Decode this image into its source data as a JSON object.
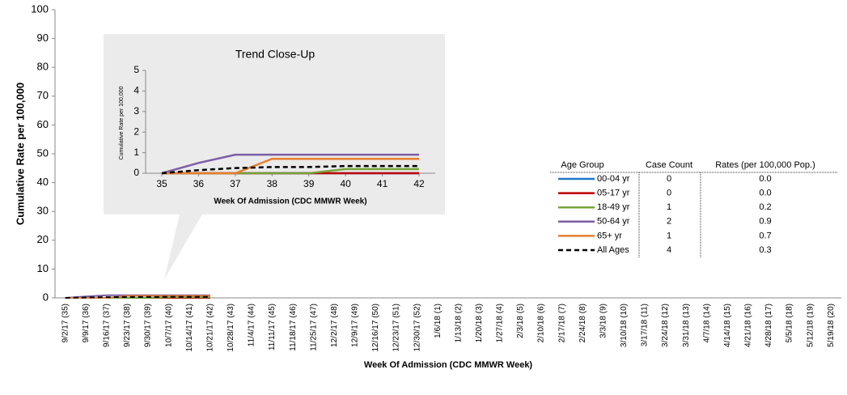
{
  "chart_data": [
    {
      "type": "line",
      "y_label": "Cumulative Rate per 100,000",
      "x_label": "Week Of Admission  (CDC MMWR Week)",
      "categories": [
        "9/2/17 (35)",
        "9/9/17 (36)",
        "9/16/17 (37)",
        "9/23/17 (38)",
        "9/30/17 (39)",
        "10/7/17 (40)",
        "10/14/17 (41)",
        "10/21/17 (42)",
        "10/28/17 (43)",
        "11/4/17 (44)",
        "11/11/17 (45)",
        "11/18/17 (46)",
        "11/25/17 (47)",
        "12/2/17 (48)",
        "12/9/17 (49)",
        "12/16/17 (50)",
        "12/23/17 (51)",
        "12/30/17 (52)",
        "1/6/18 (1)",
        "1/13/18 (2)",
        "1/20/18 (3)",
        "1/27/18 (4)",
        "2/3/18 (5)",
        "2/10/18 (6)",
        "2/17/18 (7)",
        "2/24/18 (8)",
        "3/3/18 (9)",
        "3/10/18 (10)",
        "3/17/18 (11)",
        "3/24/18 (12)",
        "3/31/18 (13)",
        "4/7/18 (14)",
        "4/14/18 (15)",
        "4/21/18 (16)",
        "4/28/18 (17)",
        "5/5/18 (18)",
        "5/12/18 (19)",
        "5/19/18 (20)"
      ],
      "ylim": [
        0,
        100
      ],
      "yticks": [
        0,
        10,
        20,
        30,
        40,
        50,
        60,
        70,
        80,
        90,
        100
      ],
      "legend_headers": [
        "Age Group",
        "Case Count",
        "Rates (per 100,000 Pop.)"
      ],
      "series": [
        {
          "name": "00-04 yr",
          "color": "#1f77c9",
          "dashed": false,
          "case_count": 0,
          "rate": {
            "value": 0,
            "label": "0.0"
          },
          "values": [
            0,
            0,
            0,
            0,
            0,
            0,
            0,
            0,
            null,
            null,
            null,
            null,
            null,
            null,
            null,
            null,
            null,
            null,
            null,
            null,
            null,
            null,
            null,
            null,
            null,
            null,
            null,
            null,
            null,
            null,
            null,
            null,
            null,
            null,
            null,
            null,
            null,
            null
          ]
        },
        {
          "name": "05-17 yr",
          "color": "#c00000",
          "dashed": false,
          "case_count": 0,
          "rate": {
            "value": 0,
            "label": "0.0"
          },
          "values": [
            0,
            0,
            0,
            0,
            0,
            0,
            0,
            0,
            null,
            null,
            null,
            null,
            null,
            null,
            null,
            null,
            null,
            null,
            null,
            null,
            null,
            null,
            null,
            null,
            null,
            null,
            null,
            null,
            null,
            null,
            null,
            null,
            null,
            null,
            null,
            null,
            null,
            null
          ]
        },
        {
          "name": "18-49 yr",
          "color": "#77a33a",
          "dashed": false,
          "case_count": 1,
          "rate": {
            "value": 0.2,
            "label": "0.2"
          },
          "values": [
            0,
            0,
            0,
            0,
            0,
            0.2,
            0.2,
            0.2,
            null,
            null,
            null,
            null,
            null,
            null,
            null,
            null,
            null,
            null,
            null,
            null,
            null,
            null,
            null,
            null,
            null,
            null,
            null,
            null,
            null,
            null,
            null,
            null,
            null,
            null,
            null,
            null,
            null,
            null
          ]
        },
        {
          "name": "50-64 yr",
          "color": "#7b5ea7",
          "dashed": false,
          "case_count": 2,
          "rate": {
            "value": 0.9,
            "label": "0.9"
          },
          "values": [
            0,
            0.5,
            0.9,
            0.9,
            0.9,
            0.9,
            0.9,
            0.9,
            null,
            null,
            null,
            null,
            null,
            null,
            null,
            null,
            null,
            null,
            null,
            null,
            null,
            null,
            null,
            null,
            null,
            null,
            null,
            null,
            null,
            null,
            null,
            null,
            null,
            null,
            null,
            null,
            null,
            null
          ]
        },
        {
          "name": "65+ yr",
          "color": "#e87d2f",
          "dashed": false,
          "case_count": 1,
          "rate": {
            "value": 0.7,
            "label": "0.7"
          },
          "values": [
            0,
            0,
            0,
            0.7,
            0.7,
            0.7,
            0.7,
            0.7,
            null,
            null,
            null,
            null,
            null,
            null,
            null,
            null,
            null,
            null,
            null,
            null,
            null,
            null,
            null,
            null,
            null,
            null,
            null,
            null,
            null,
            null,
            null,
            null,
            null,
            null,
            null,
            null,
            null,
            null
          ]
        },
        {
          "name": "All Ages",
          "color": "#000000",
          "dashed": true,
          "case_count": 4,
          "rate": {
            "value": 0.3,
            "label": "0.3"
          },
          "values": [
            0,
            0.15,
            0.25,
            0.3,
            0.3,
            0.35,
            0.35,
            0.35,
            null,
            null,
            null,
            null,
            null,
            null,
            null,
            null,
            null,
            null,
            null,
            null,
            null,
            null,
            null,
            null,
            null,
            null,
            null,
            null,
            null,
            null,
            null,
            null,
            null,
            null,
            null,
            null,
            null,
            null
          ]
        }
      ]
    },
    {
      "type": "line",
      "title": "Trend Close-Up",
      "y_label": "Cumulative Rate per 100,000",
      "x_label": "Week Of Admission  (CDC MMWR Week)",
      "x": [
        35,
        36,
        37,
        38,
        39,
        40,
        41,
        42
      ],
      "xlim": [
        35,
        42
      ],
      "xticks": [
        35,
        36,
        37,
        38,
        39,
        40,
        41,
        42
      ],
      "ylim": [
        0,
        5
      ],
      "yticks": [
        0,
        1,
        2,
        3,
        4,
        5
      ],
      "series": [
        {
          "name": "00-04 yr",
          "color": "#1f77c9",
          "dashed": false,
          "values": [
            0,
            0,
            0,
            0,
            0,
            0,
            0,
            0
          ]
        },
        {
          "name": "05-17 yr",
          "color": "#c00000",
          "dashed": false,
          "values": [
            0,
            0,
            0,
            0,
            0,
            0,
            0,
            0
          ]
        },
        {
          "name": "18-49 yr",
          "color": "#77a33a",
          "dashed": false,
          "values": [
            0,
            0,
            0,
            0,
            0,
            0.2,
            0.2,
            0.2
          ]
        },
        {
          "name": "50-64 yr",
          "color": "#7b5ea7",
          "dashed": false,
          "values": [
            0,
            0.5,
            0.9,
            0.9,
            0.9,
            0.9,
            0.9,
            0.9
          ]
        },
        {
          "name": "65+ yr",
          "color": "#e87d2f",
          "dashed": false,
          "values": [
            0,
            0,
            0,
            0.7,
            0.7,
            0.7,
            0.7,
            0.7
          ]
        },
        {
          "name": "All Ages",
          "color": "#000000",
          "dashed": true,
          "values": [
            0,
            0.15,
            0.25,
            0.3,
            0.3,
            0.35,
            0.35,
            0.35
          ]
        }
      ]
    }
  ]
}
